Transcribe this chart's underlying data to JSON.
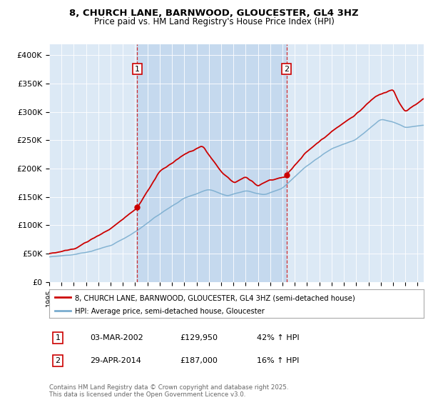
{
  "title": "8, CHURCH LANE, BARNWOOD, GLOUCESTER, GL4 3HZ",
  "subtitle": "Price paid vs. HM Land Registry's House Price Index (HPI)",
  "ylim": [
    0,
    420000
  ],
  "yticks": [
    0,
    50000,
    100000,
    150000,
    200000,
    250000,
    300000,
    350000,
    400000
  ],
  "ytick_labels": [
    "£0",
    "£50K",
    "£100K",
    "£150K",
    "£200K",
    "£250K",
    "£300K",
    "£350K",
    "£400K"
  ],
  "background_color": "#dce9f5",
  "highlight_color": "#c5d9ee",
  "line1_color": "#cc0000",
  "line2_color": "#7aadcf",
  "vline_color": "#cc0000",
  "dot_color": "#cc0000",
  "sale1_year": 2002.17,
  "sale1_price": 129950,
  "sale2_year": 2014.33,
  "sale2_price": 187000,
  "legend1_label": "8, CHURCH LANE, BARNWOOD, GLOUCESTER, GL4 3HZ (semi-detached house)",
  "legend2_label": "HPI: Average price, semi-detached house, Gloucester",
  "table_row1": [
    "1",
    "03-MAR-2002",
    "£129,950",
    "42% ↑ HPI"
  ],
  "table_row2": [
    "2",
    "29-APR-2014",
    "£187,000",
    "16% ↑ HPI"
  ],
  "footnote": "Contains HM Land Registry data © Crown copyright and database right 2025.\nThis data is licensed under the Open Government Licence v3.0.",
  "xmin": 1995,
  "xmax": 2025.5
}
